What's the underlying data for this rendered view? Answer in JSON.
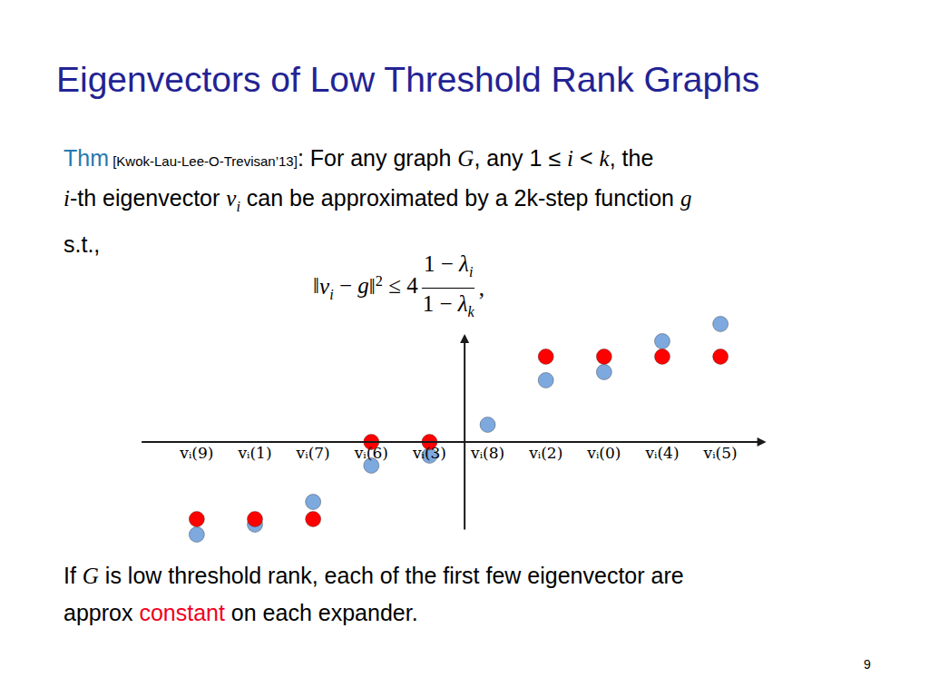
{
  "slide": {
    "title": "Eigenvectors of Low Threshold Rank Graphs",
    "theorem_lines": [
      [
        {
          "t": "Thm",
          "style": "label"
        },
        {
          "t": " [Kwok-Lau-Lee-O-Trevisan’13]",
          "style": "cite"
        },
        {
          "t": ": For any graph "
        },
        {
          "m": "G"
        },
        {
          "t": ", any 1 ≤ "
        },
        {
          "m": "i"
        },
        {
          "t": " < "
        },
        {
          "m": "k"
        },
        {
          "t": ", the"
        }
      ],
      [
        {
          "m": "i"
        },
        {
          "t": "-th eigenvector "
        },
        {
          "m": "v",
          "sub": "i"
        },
        {
          "t": " can be approximated by a 2k-step function "
        },
        {
          "m": "g"
        }
      ],
      [
        {
          "t": "s.t.,"
        }
      ]
    ],
    "formula": {
      "left": [
        {
          "t": "‖"
        },
        {
          "m": "v",
          "sub": "i"
        },
        {
          "t": " − "
        },
        {
          "m": "g"
        },
        {
          "t": "‖",
          "sup": "2"
        },
        {
          "t": " ≤ 4"
        }
      ],
      "numerator": [
        {
          "t": "1 − "
        },
        {
          "m": "λ",
          "sub": "i"
        }
      ],
      "denominator": [
        {
          "t": "1 − "
        },
        {
          "m": "λ",
          "sub": "k"
        }
      ],
      "right": [
        {
          "t": ","
        }
      ]
    },
    "bottom_lines": [
      [
        {
          "t": "If "
        },
        {
          "m": "G"
        },
        {
          "t": " is low threshold rank, each of the first few eigenvector are"
        }
      ],
      [
        {
          "t": "approx "
        },
        {
          "t": "constant",
          "style": "highlight"
        },
        {
          "t": " on each expander."
        }
      ]
    ],
    "page_number": "9"
  },
  "chart_data": {
    "type": "scatter",
    "categories": [
      "vᵢ(9)",
      "vᵢ(1)",
      "vᵢ(7)",
      "vᵢ(6)",
      "vᵢ(3)",
      "vᵢ(8)",
      "vᵢ(2)",
      "vᵢ(0)",
      "vᵢ(4)",
      "vᵢ(5)"
    ],
    "series": [
      {
        "color": "#7ea9df",
        "values": [
          -10.2,
          -9.1,
          -6.6,
          -2.6,
          -1.5,
          1.9,
          6.8,
          7.7,
          11.1,
          13.0
        ]
      },
      {
        "color": "#ff0000",
        "values": [
          -8.5,
          -8.5,
          -8.5,
          0,
          0,
          null,
          9.4,
          9.4,
          9.4,
          9.4
        ]
      }
    ],
    "marker": "circle",
    "ylim": [
      -11.5,
      14
    ],
    "grid": false,
    "tick_labels": "x"
  }
}
